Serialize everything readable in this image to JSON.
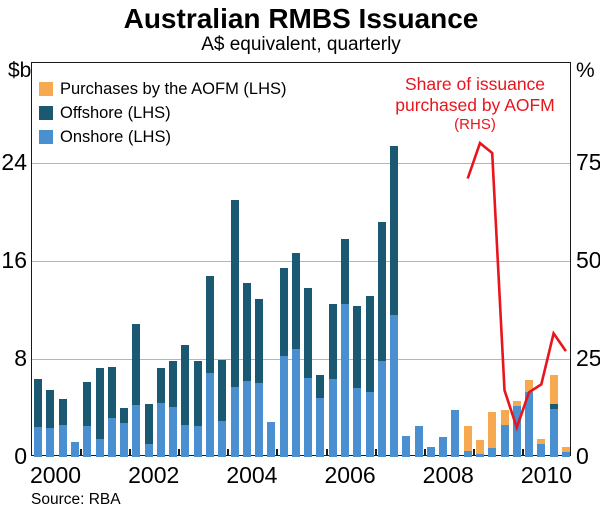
{
  "title": "Australian RMBS Issuance",
  "subtitle": "A$ equivalent, quarterly",
  "source": "Source: RBA",
  "left_axis_unit": "$b",
  "right_axis_unit": "%",
  "annotation": {
    "line1": "Share of issuance",
    "line2": "purchased by AOFM",
    "line3": "(RHS)",
    "color": "#e8151d"
  },
  "legend": [
    {
      "label": "Purchases by the AOFM (LHS)",
      "color": "#f7a951"
    },
    {
      "label": "Offshore (LHS)",
      "color": "#1b5872"
    },
    {
      "label": "Onshore (LHS)",
      "color": "#4a90d1"
    }
  ],
  "colors": {
    "onshore": "#4a90d1",
    "offshore": "#1b5872",
    "aofm": "#f7a951",
    "line": "#e8151d",
    "grid": "#b5b5b5",
    "frame": "#1a1a1a"
  },
  "chart_data": {
    "type": "bar",
    "subtype": "stacked-bar-with-line",
    "categories": [
      "2000 Q1",
      "2000 Q2",
      "2000 Q3",
      "2000 Q4",
      "2001 Q1",
      "2001 Q2",
      "2001 Q3",
      "2001 Q4",
      "2002 Q1",
      "2002 Q2",
      "2002 Q3",
      "2002 Q4",
      "2003 Q1",
      "2003 Q2",
      "2003 Q3",
      "2003 Q4",
      "2004 Q1",
      "2004 Q2",
      "2004 Q3",
      "2004 Q4",
      "2005 Q1",
      "2005 Q2",
      "2005 Q3",
      "2005 Q4",
      "2006 Q1",
      "2006 Q2",
      "2006 Q3",
      "2006 Q4",
      "2007 Q1",
      "2007 Q2",
      "2007 Q3",
      "2007 Q4",
      "2008 Q1",
      "2008 Q2",
      "2008 Q3",
      "2008 Q4",
      "2009 Q1",
      "2009 Q2",
      "2009 Q3",
      "2009 Q4",
      "2010 Q1",
      "2010 Q2",
      "2010 Q3",
      "2010 Q4"
    ],
    "series": [
      {
        "name": "Onshore (LHS)",
        "axis": "left",
        "color": "#4a90d1",
        "values": [
          2.45,
          2.4,
          2.65,
          1.2,
          2.55,
          1.45,
          3.15,
          2.8,
          4.25,
          1.1,
          4.4,
          4.1,
          2.65,
          2.55,
          6.85,
          2.95,
          5.7,
          6.2,
          6.0,
          2.85,
          8.2,
          8.8,
          6.45,
          4.8,
          6.4,
          12.45,
          5.6,
          5.3,
          7.85,
          11.55,
          1.75,
          2.55,
          0.8,
          1.65,
          3.8,
          0.5,
          0.25,
          0.7,
          2.6,
          4.15,
          5.3,
          1.1,
          3.9,
          0.4
        ]
      },
      {
        "name": "Offshore (LHS)",
        "axis": "left",
        "color": "#1b5872",
        "values": [
          3.9,
          3.1,
          2.05,
          0,
          3.6,
          5.8,
          4.2,
          1.2,
          6.6,
          3.2,
          2.85,
          3.7,
          6.5,
          5.3,
          7.9,
          5.0,
          15.3,
          8.0,
          6.9,
          0,
          7.25,
          7.85,
          7.35,
          1.85,
          6.1,
          5.3,
          6.75,
          7.8,
          11.35,
          13.8,
          0,
          0,
          0,
          0,
          0,
          0,
          0,
          0,
          0,
          0,
          0,
          0,
          0.45,
          0
        ]
      },
      {
        "name": "Purchases by the AOFM (LHS)",
        "axis": "left",
        "color": "#f7a951",
        "values": [
          0,
          0,
          0,
          0,
          0,
          0,
          0,
          0,
          0,
          0,
          0,
          0,
          0,
          0,
          0,
          0,
          0,
          0,
          0,
          0,
          0,
          0,
          0,
          0,
          0,
          0,
          0,
          0,
          0,
          0,
          0,
          0,
          0,
          0,
          0,
          2.05,
          1.1,
          3.0,
          1.2,
          0.45,
          1.0,
          0.4,
          2.3,
          0.4
        ]
      }
    ],
    "line_series": {
      "name": "Share of issuance purchased by AOFM (RHS)",
      "axis": "right",
      "color": "#e8151d",
      "categories": [
        "2008 Q4",
        "2009 Q1",
        "2009 Q2",
        "2009 Q3",
        "2009 Q4",
        "2010 Q1",
        "2010 Q2",
        "2010 Q3",
        "2010 Q4"
      ],
      "values": [
        71,
        80,
        77.5,
        17,
        7.5,
        16.5,
        18.5,
        31.5,
        27
      ]
    },
    "left_axis": {
      "label": "$b",
      "ticks": [
        0,
        8,
        16,
        24
      ],
      "range": [
        0,
        32.1
      ]
    },
    "right_axis": {
      "label": "%",
      "ticks": [
        0,
        25,
        50,
        75
      ],
      "range": [
        0,
        100.3
      ]
    },
    "x_axis": {
      "labels": [
        "2000",
        "2002",
        "2004",
        "2006",
        "2008",
        "2010"
      ],
      "first_year": 2000,
      "years": 11
    },
    "grid": "horizontal",
    "legend_position": "top-left"
  }
}
